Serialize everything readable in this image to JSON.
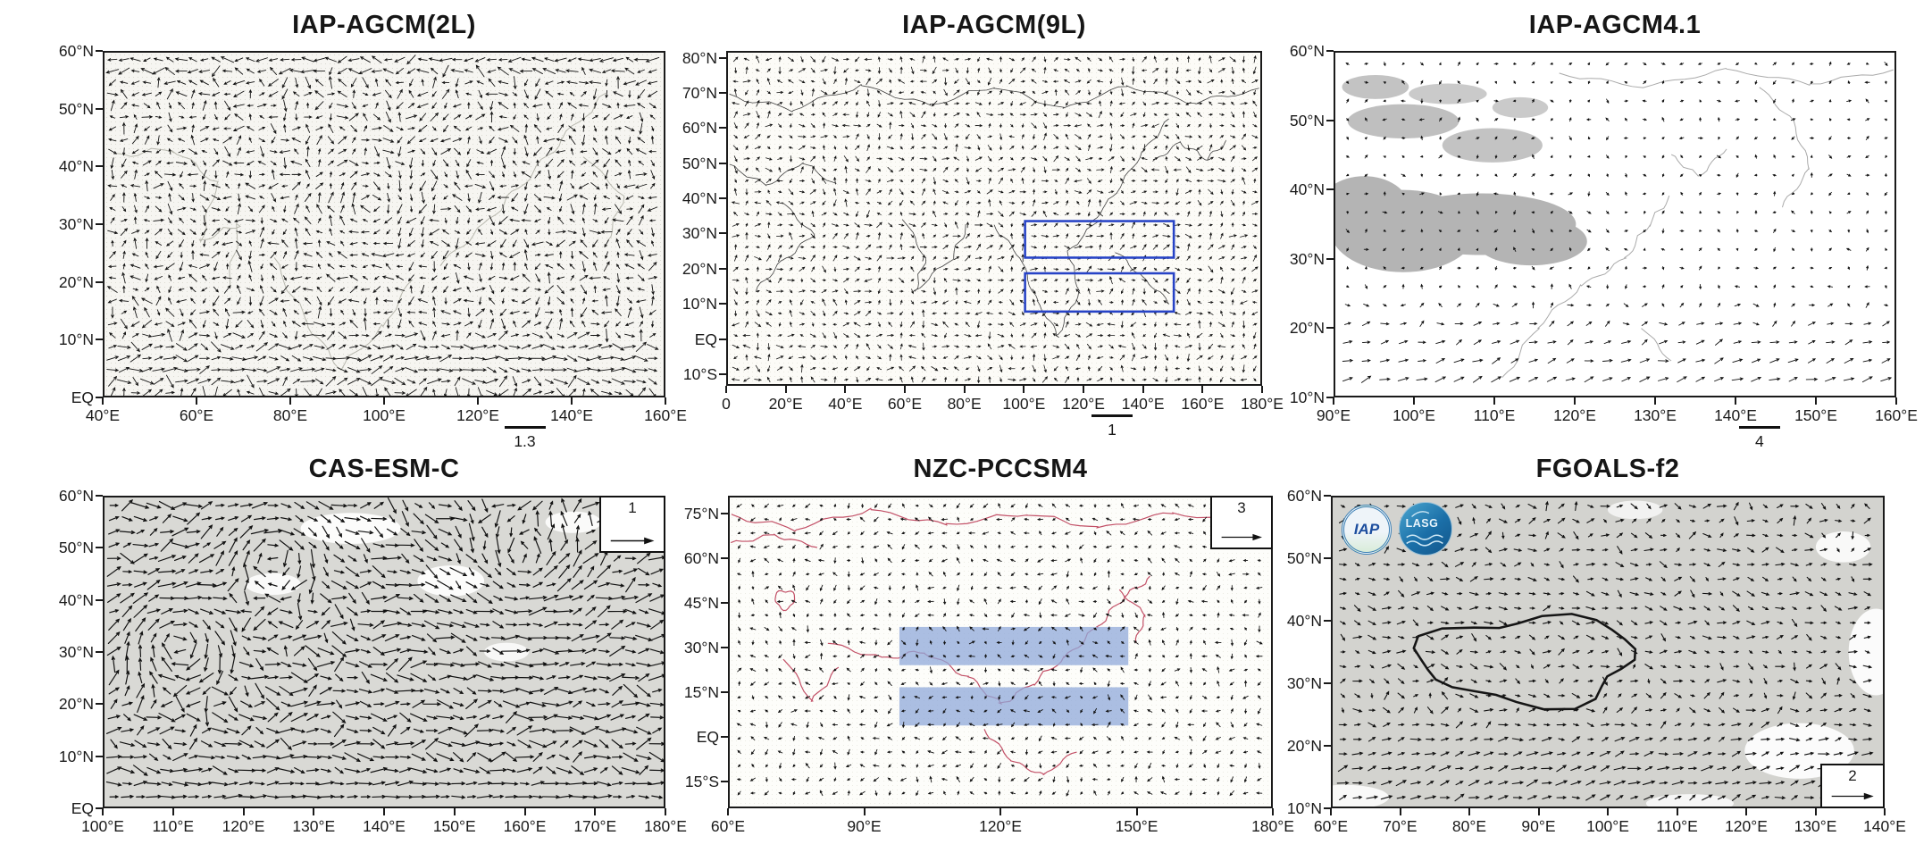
{
  "figure": {
    "kind": "multi-panel wind vector (quiver) maps",
    "rows": 2,
    "columns": 3,
    "vector_color": "#111111"
  },
  "chart_data": [
    {
      "type": "vector_field_map",
      "title": "IAP-AGCM(2L)",
      "x_ticks": [
        "40°E",
        "60°E",
        "80°E",
        "100°E",
        "120°E",
        "140°E",
        "160°E"
      ],
      "y_ticks": [
        "60°N",
        "50°N",
        "40°N",
        "30°N",
        "20°N",
        "10°N",
        "EQ"
      ],
      "xlim": [
        40,
        160
      ],
      "ylim": [
        0,
        60
      ],
      "scale_reference": {
        "value": "1.3",
        "placement": "below-axis"
      },
      "annotations": [],
      "map_style": {
        "background": "#f6f5f1",
        "coastline_color": "#b7b7ad"
      },
      "description": "Dense black wind vectors with cyclonic circulation near 110–130°E, 20–30°N and strong westerlies south of 10°N"
    },
    {
      "type": "vector_field_map",
      "title": "IAP-AGCM(9L)",
      "x_ticks": [
        "0",
        "20°E",
        "40°E",
        "60°E",
        "80°E",
        "100°E",
        "120°E",
        "140°E",
        "160°E",
        "180°E"
      ],
      "y_ticks": [
        "80°N",
        "70°N",
        "60°N",
        "50°N",
        "40°N",
        "30°N",
        "20°N",
        "10°N",
        "EQ",
        "10°S"
      ],
      "xlim": [
        0,
        180
      ],
      "ylim": [
        -10,
        80
      ],
      "scale_reference": {
        "value": "1",
        "placement": "below-axis"
      },
      "annotations": [
        {
          "kind": "box",
          "outline_color": "#2743c6",
          "lon_range": [
            100.5,
            151
          ],
          "lat_range": [
            23,
            33.5
          ]
        },
        {
          "kind": "box",
          "outline_color": "#2743c6",
          "lon_range": [
            100.5,
            151
          ],
          "lat_range": [
            7.5,
            18.5
          ]
        }
      ],
      "map_style": {
        "background": "#fcfbf7",
        "coastline_color": "#3f3f3f"
      },
      "description": "Small wind vectors over Eurasia with two blue index boxes over East Asia / western North Pacific"
    },
    {
      "type": "vector_field_map",
      "title": "IAP-AGCM4.1",
      "x_ticks": [
        "90°E",
        "100°E",
        "110°E",
        "120°E",
        "130°E",
        "140°E",
        "150°E",
        "160°E"
      ],
      "y_ticks": [
        "60°N",
        "50°N",
        "40°N",
        "30°N",
        "20°N",
        "10°N"
      ],
      "xlim": [
        90,
        160
      ],
      "ylim": [
        10,
        60
      ],
      "scale_reference": {
        "value": "4",
        "placement": "below-axis"
      },
      "annotations": [],
      "map_style": {
        "background": "#ffffff",
        "land_fill": "#b4b4b4",
        "coastline_color": "#a9a9a9"
      },
      "description": "Tiny vectors north of ~25°N, stronger southwesterlies south of 20°N; gray shaded land over Tibetan Plateau region"
    },
    {
      "type": "vector_field_map",
      "title": "CAS-ESM-C",
      "x_ticks": [
        "100°E",
        "110°E",
        "120°E",
        "130°E",
        "140°E",
        "150°E",
        "160°E",
        "170°E",
        "180°E"
      ],
      "y_ticks": [
        "60°N",
        "50°N",
        "40°N",
        "30°N",
        "20°N",
        "10°N",
        "EQ"
      ],
      "xlim": [
        100,
        180
      ],
      "ylim": [
        0,
        60
      ],
      "scale_reference": {
        "value": "1",
        "placement": "box-top-right"
      },
      "annotations": [],
      "map_style": {
        "background": "#d9d9d5",
        "sea_fill": "#ffffff"
      },
      "description": "Long streamline-like vectors with closed cyclonic eddy near 112°E, 20°N and strong westerlies near the equator"
    },
    {
      "type": "vector_field_map",
      "title": "NZC-PCCSM4",
      "x_ticks": [
        "60°E",
        "90°E",
        "120°E",
        "150°E",
        "180°E"
      ],
      "y_ticks": [
        "75°N",
        "60°N",
        "45°N",
        "30°N",
        "15°N",
        "EQ",
        "15°S"
      ],
      "xlim": [
        60,
        180
      ],
      "ylim": [
        -15,
        75
      ],
      "scale_reference": {
        "value": "3",
        "placement": "box-top-right"
      },
      "annotations": [
        {
          "kind": "band",
          "fill_color": "#8fa8da",
          "lon_range": [
            97.5,
            148.5
          ],
          "lat_range": [
            24,
            37
          ]
        },
        {
          "kind": "band",
          "fill_color": "#8fa8da",
          "lon_range": [
            97.5,
            148.5
          ],
          "lat_range": [
            3.5,
            16.5
          ]
        }
      ],
      "map_style": {
        "background": "#fdfdfa",
        "coastline_color": "#c24f66"
      },
      "description": "Small dot-like vectors, red coastlines, two semi-transparent blue shaded index bands over East Asia"
    },
    {
      "type": "vector_field_map",
      "title": "FGOALS-f2",
      "x_ticks": [
        "60°E",
        "70°E",
        "80°E",
        "90°E",
        "100°E",
        "110°E",
        "120°E",
        "130°E",
        "140°E"
      ],
      "y_ticks": [
        "60°N",
        "50°N",
        "40°N",
        "30°N",
        "20°N",
        "10°N"
      ],
      "xlim": [
        60,
        140
      ],
      "ylim": [
        10,
        60
      ],
      "scale_reference": {
        "value": "2",
        "placement": "box-bottom-right"
      },
      "annotations": [
        {
          "kind": "outline",
          "feature": "Tibetan Plateau contour",
          "color": "#151515"
        }
      ],
      "logos": [
        "IAP",
        "LASG"
      ],
      "map_style": {
        "background": "#d3d3cf",
        "sea_fill": "#ffffff"
      },
      "description": "Gray land background with thick black Tibetan Plateau outline and southwesterly vectors in the south; IAP and LASG logos top-left"
    }
  ]
}
